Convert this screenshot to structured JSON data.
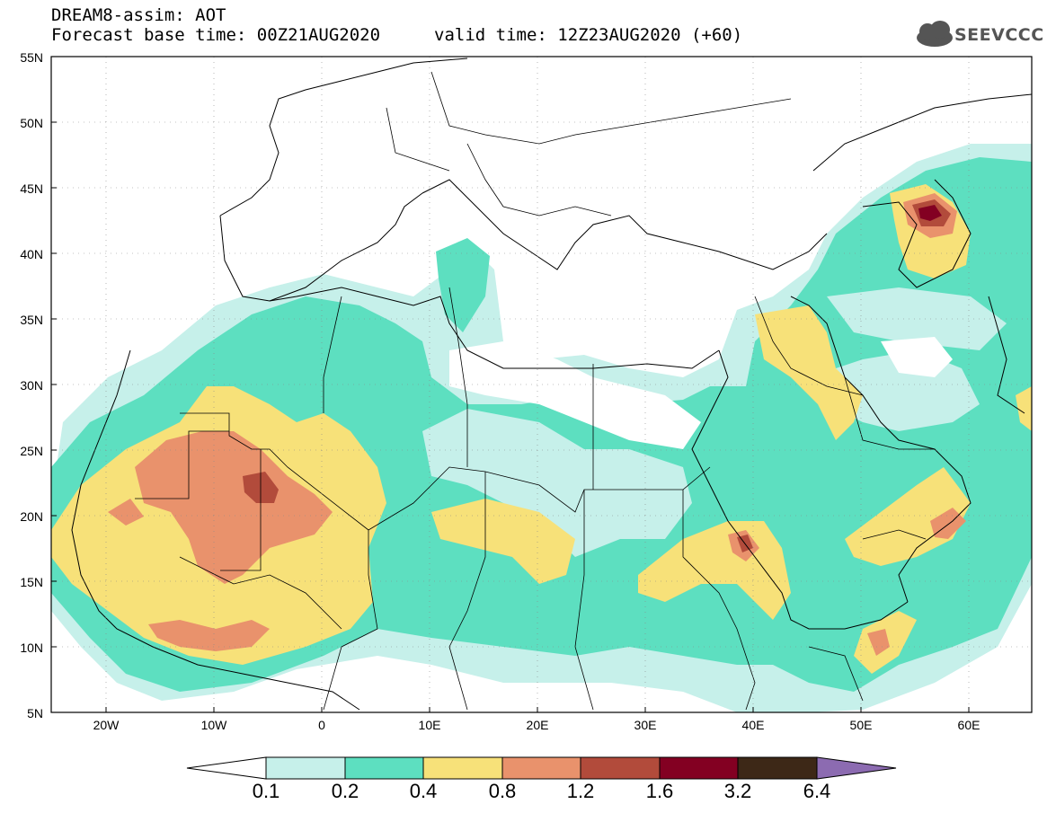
{
  "header": {
    "title": "DREAM8-assim: AOT",
    "base_time": "Forecast base time: 00Z21AUG2020",
    "valid_time": "valid time: 12Z23AUG2020 (+60)",
    "logo": "SEEVCCC"
  },
  "map": {
    "lat_labels": [
      "55N",
      "50N",
      "45N",
      "40N",
      "35N",
      "30N",
      "25N",
      "20N",
      "15N",
      "10N",
      "5N"
    ],
    "lon_labels": [
      "20W",
      "10W",
      "0",
      "10E",
      "20E",
      "30E",
      "40E",
      "50E",
      "60E"
    ],
    "extent": {
      "lon_min": -25,
      "lon_max": 65,
      "lat_min": 5,
      "lat_max": 55
    }
  },
  "colorbar": {
    "thresholds": [
      "0.1",
      "0.2",
      "0.4",
      "0.8",
      "1.2",
      "1.6",
      "3.2",
      "6.4"
    ],
    "colors": [
      "#ffffff",
      "#c6f0ea",
      "#5ddfc0",
      "#f7e179",
      "#e9926c",
      "#b24b3b",
      "#830022",
      "#3d2817",
      "#8c6bb1"
    ]
  },
  "colors": {
    "ocean": "#ffffff",
    "border": "#000000",
    "level1": "#c6f0ea",
    "level2": "#5ddfc0",
    "level3": "#f7e179",
    "level4": "#e9926c",
    "level5": "#b24b3b",
    "level6": "#830022"
  }
}
